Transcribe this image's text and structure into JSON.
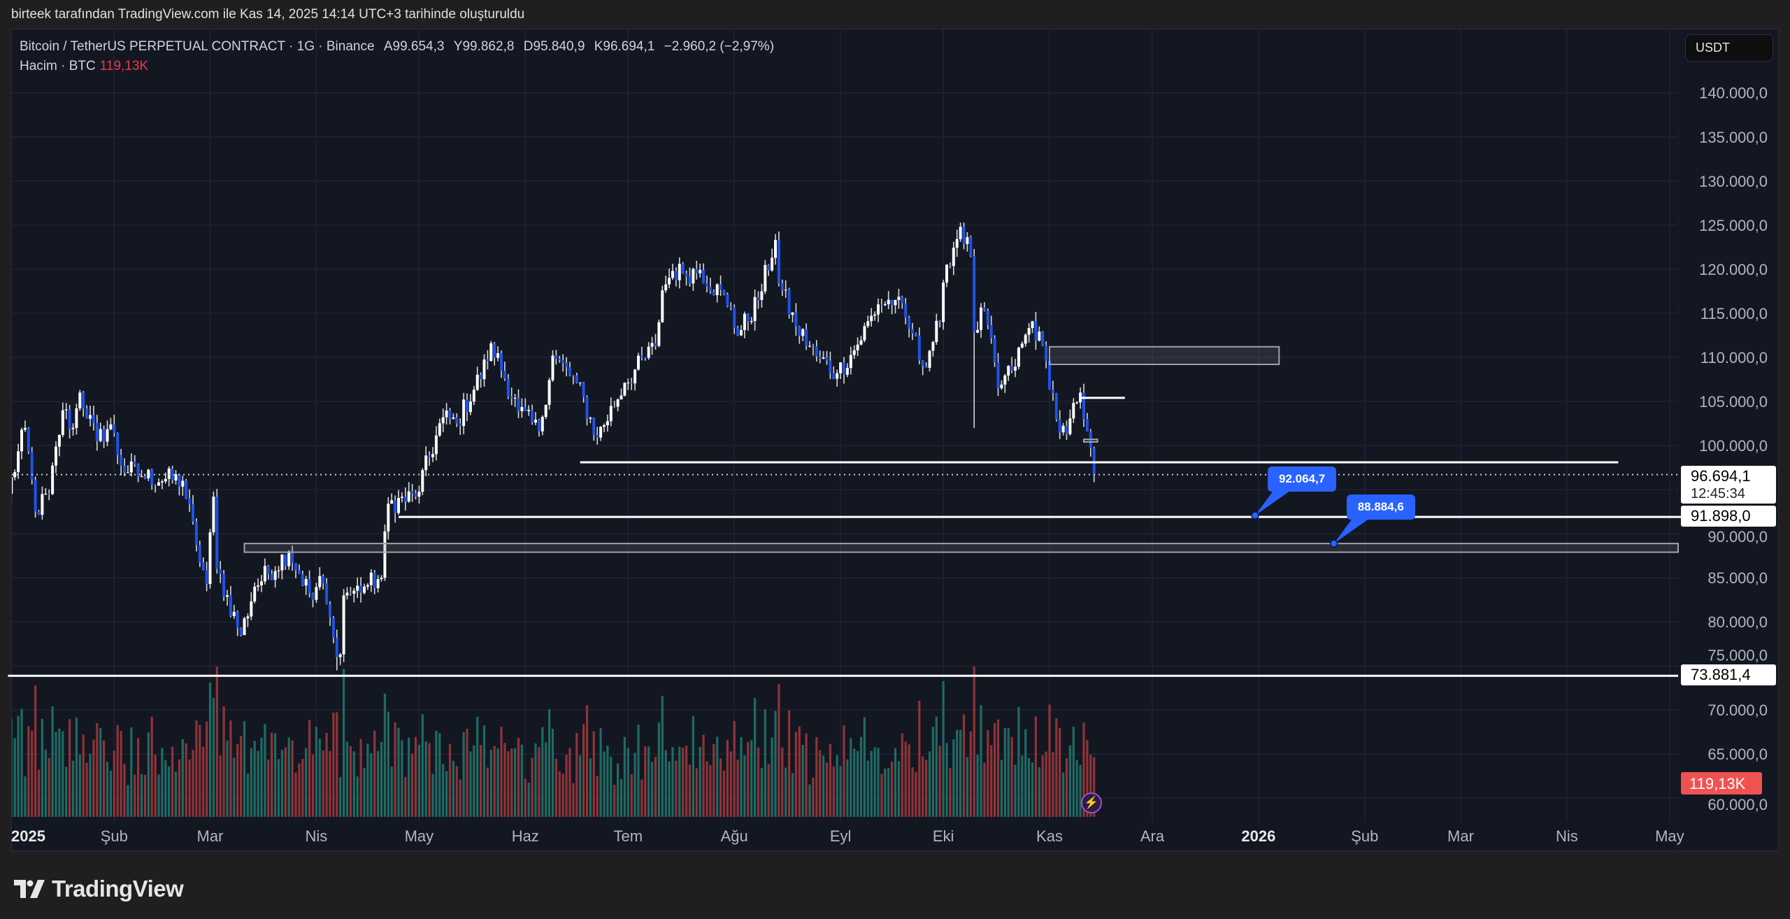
{
  "credit": "birteek tarafından TradingView.com ile Kas 14, 2025 14:14 UTC+3 tarihinde oluşturuldu",
  "legend": {
    "symbol": "Bitcoin / TetherUS PERPETUAL CONTRACT · 1G · Binance",
    "open_label": "A",
    "open": "99.654,3",
    "high_label": "Y",
    "high": "99.862,8",
    "low_label": "D",
    "low": "95.840,9",
    "close_label": "K",
    "close": "96.694,1",
    "change": "−2.960,2 (−2,97%)",
    "volume_label": "Hacim · BTC",
    "volume": "119,13K"
  },
  "currency_button": "USDT",
  "axis_labels": {
    "last_price": "96.694,1",
    "countdown": "12:45:34",
    "level_1": "91.898,0",
    "level_2": "73.881,4",
    "volume": "119,13K"
  },
  "callouts": [
    {
      "text": "92.064,7",
      "price": 92064.7,
      "date": "2025-12-31"
    },
    {
      "text": "88.884,6",
      "price": 88884.6,
      "date": "2026-01-23"
    }
  ],
  "brand": "TradingView",
  "colors": {
    "up": "#ffffff",
    "down": "#1e53e5",
    "vol_up": "#1f6b63",
    "vol_down": "#8f3438",
    "background": "#131722",
    "accent": "#2962ff",
    "volume_label": "#f05252"
  },
  "chart_data": {
    "type": "candlestick",
    "interval": "1D",
    "y_scale": "linear",
    "ylim": [
      57000,
      146000
    ],
    "price_ticks": [
      "140.000,0",
      "135.000,0",
      "130.000,0",
      "125.000,0",
      "120.000,0",
      "115.000,0",
      "110.000,0",
      "105.000,0",
      "100.000,0",
      "90.000,0",
      "85.000,0",
      "80.000,0",
      "75.000,0",
      "70.000,0",
      "65.000,0",
      "60.000,0"
    ],
    "price_tick_values": [
      140000,
      135000,
      130000,
      125000,
      120000,
      115000,
      110000,
      105000,
      100000,
      90000,
      85000,
      80000,
      75000,
      70000,
      65000,
      60000
    ],
    "time_ticks": [
      {
        "label": "2025",
        "date": "2025-01-01",
        "bold": true
      },
      {
        "label": "Şub",
        "date": "2025-02-01"
      },
      {
        "label": "Mar",
        "date": "2025-03-01"
      },
      {
        "label": "Nis",
        "date": "2025-04-01"
      },
      {
        "label": "May",
        "date": "2025-05-01"
      },
      {
        "label": "Haz",
        "date": "2025-06-01"
      },
      {
        "label": "Tem",
        "date": "2025-07-01"
      },
      {
        "label": "Ağu",
        "date": "2025-08-01"
      },
      {
        "label": "Eyl",
        "date": "2025-09-01"
      },
      {
        "label": "Eki",
        "date": "2025-10-01"
      },
      {
        "label": "Kas",
        "date": "2025-11-01"
      },
      {
        "label": "Ara",
        "date": "2025-12-01"
      },
      {
        "label": "2026",
        "date": "2026-01-01",
        "bold": true
      },
      {
        "label": "Şub",
        "date": "2026-02-01"
      },
      {
        "label": "Mar",
        "date": "2026-03-01"
      },
      {
        "label": "Nis",
        "date": "2026-04-01"
      },
      {
        "label": "May",
        "date": "2026-05-01"
      }
    ],
    "close_series": [
      [
        "2025-01-01",
        94500
      ],
      [
        "2025-01-06",
        102000
      ],
      [
        "2025-01-09",
        92500
      ],
      [
        "2025-01-13",
        94500
      ],
      [
        "2025-01-17",
        104000
      ],
      [
        "2025-01-20",
        102000
      ],
      [
        "2025-01-22",
        106000
      ],
      [
        "2025-01-27",
        100500
      ],
      [
        "2025-01-31",
        102400
      ],
      [
        "2025-02-03",
        97700
      ],
      [
        "2025-02-09",
        96500
      ],
      [
        "2025-02-21",
        96000
      ],
      [
        "2025-02-25",
        88700
      ],
      [
        "2025-02-28",
        84300
      ],
      [
        "2025-03-02",
        94200
      ],
      [
        "2025-03-03",
        86000
      ],
      [
        "2025-03-10",
        78500
      ],
      [
        "2025-03-14",
        84000
      ],
      [
        "2025-03-24",
        88000
      ],
      [
        "2025-03-31",
        82500
      ],
      [
        "2025-04-02",
        85200
      ],
      [
        "2025-04-06",
        78200
      ],
      [
        "2025-04-08",
        76300
      ],
      [
        "2025-04-09",
        83000
      ],
      [
        "2025-04-15",
        84000
      ],
      [
        "2025-04-20",
        85000
      ],
      [
        "2025-04-22",
        93400
      ],
      [
        "2025-04-30",
        94200
      ],
      [
        "2025-05-08",
        103200
      ],
      [
        "2025-05-12",
        102500
      ],
      [
        "2025-05-21",
        109600
      ],
      [
        "2025-05-22",
        111600
      ],
      [
        "2025-05-30",
        103900
      ],
      [
        "2025-06-05",
        101600
      ],
      [
        "2025-06-09",
        110200
      ],
      [
        "2025-06-16",
        107100
      ],
      [
        "2025-06-22",
        100900
      ],
      [
        "2025-06-30",
        107100
      ],
      [
        "2025-07-09",
        111300
      ],
      [
        "2025-07-11",
        117600
      ],
      [
        "2025-07-14",
        119800
      ],
      [
        "2025-07-17",
        119500
      ],
      [
        "2025-07-22",
        119900
      ],
      [
        "2025-07-31",
        115700
      ],
      [
        "2025-08-02",
        112500
      ],
      [
        "2025-08-08",
        116500
      ],
      [
        "2025-08-13",
        123300
      ],
      [
        "2025-08-14",
        118400
      ],
      [
        "2025-08-19",
        113500
      ],
      [
        "2025-08-25",
        110100
      ],
      [
        "2025-08-31",
        108200
      ],
      [
        "2025-09-05",
        110800
      ],
      [
        "2025-09-12",
        116000
      ],
      [
        "2025-09-17",
        116500
      ],
      [
        "2025-09-22",
        112700
      ],
      [
        "2025-09-25",
        109000
      ],
      [
        "2025-09-30",
        114000
      ],
      [
        "2025-10-02",
        120500
      ],
      [
        "2025-10-06",
        124800
      ],
      [
        "2025-10-09",
        121500
      ],
      [
        "2025-10-10",
        112800
      ],
      [
        "2025-10-13",
        115300
      ],
      [
        "2025-10-17",
        106500
      ],
      [
        "2025-10-21",
        108500
      ],
      [
        "2025-10-27",
        114100
      ],
      [
        "2025-10-31",
        109600
      ],
      [
        "2025-11-04",
        101500
      ],
      [
        "2025-11-06",
        101300
      ],
      [
        "2025-11-10",
        106000
      ],
      [
        "2025-11-11",
        103000
      ],
      [
        "2025-11-12",
        101600
      ],
      [
        "2025-11-13",
        99700
      ],
      [
        "2025-11-14",
        96694.1
      ]
    ],
    "last_candle": {
      "date": "2025-11-14",
      "open": 99654.3,
      "high": 99862.8,
      "low": 95840.9,
      "close": 96694.1,
      "volume_k": 119.13
    },
    "notable_lows": [
      [
        "2025-04-07",
        74500
      ],
      [
        "2025-10-10",
        102000
      ]
    ],
    "drawings": {
      "last_price_line": 96694.1,
      "horizontal_lines": [
        {
          "price": 98100,
          "from": "2025-06-17",
          "to": "2026-04-16"
        },
        {
          "price": 91898.0,
          "from": "2025-04-25",
          "to": "axis"
        },
        {
          "price": 73881.4,
          "from": "2025-01-01",
          "to": "axis"
        },
        {
          "price": 105400,
          "from": "2025-11-10",
          "to": "2025-11-23"
        }
      ],
      "zones": [
        {
          "top": 111200,
          "bottom": 109200,
          "from": "2025-11-01",
          "to": "2026-01-07"
        },
        {
          "top": 88884.6,
          "bottom": 87900,
          "from": "2025-03-11",
          "to": "axis"
        },
        {
          "top": 100700,
          "bottom": 100400,
          "from": "2025-11-11",
          "to": "2025-11-15"
        }
      ]
    }
  }
}
